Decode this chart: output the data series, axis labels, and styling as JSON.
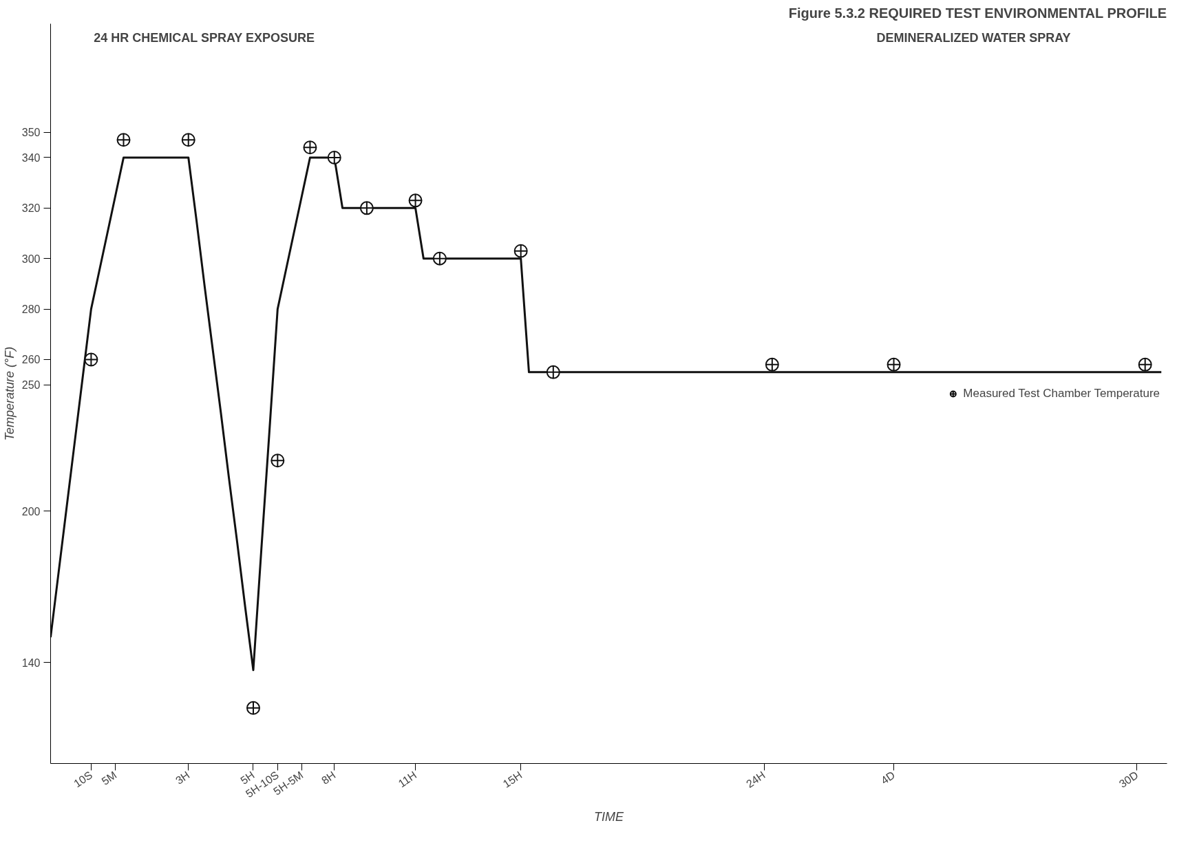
{
  "chart_data": {
    "type": "line",
    "title": "Figure 5.3.2 REQUIRED TEST ENVIRONMENTAL PROFILE",
    "xlabel": "TIME",
    "ylabel": "Temperature (°F)",
    "annotations": [
      "24 HR CHEMICAL SPRAY EXPOSURE",
      "DEMINERALIZED WATER SPRAY"
    ],
    "categories": [
      null,
      null,
      null,
      null,
      null,
      "10S",
      null,
      null,
      "5M",
      null,
      null,
      null,
      null,
      null,
      null,
      null,
      null,
      "3H",
      null,
      null,
      null,
      null,
      null,
      null,
      null,
      "5H",
      null,
      null,
      "5H-10S",
      null,
      null,
      "5H-5M",
      null,
      null,
      null,
      "8H",
      null,
      null,
      null,
      null,
      null,
      null,
      null,
      null,
      null,
      "11H",
      null,
      null,
      null,
      null,
      null,
      null,
      null,
      null,
      null,
      null,
      null,
      null,
      "15H",
      null,
      null,
      null,
      null,
      null,
      null,
      null,
      null,
      null,
      null,
      null,
      null,
      null,
      null,
      null,
      null,
      null,
      null,
      null,
      null,
      null,
      null,
      null,
      null,
      null,
      null,
      null,
      null,
      null,
      "24H",
      null,
      null,
      null,
      null,
      null,
      null,
      null,
      null,
      null,
      null,
      null,
      null,
      null,
      null,
      null,
      "4D",
      null,
      null,
      null,
      null,
      null,
      null,
      null,
      null,
      null,
      null,
      null,
      null,
      null,
      null,
      null,
      null,
      null,
      null,
      null,
      null,
      null,
      null,
      null,
      null,
      null,
      null,
      null,
      null,
      null,
      "30D",
      null,
      null,
      null
    ],
    "ylim": [
      100,
      393
    ],
    "yticks": [
      140,
      200,
      250,
      260,
      280,
      300,
      320,
      340,
      350
    ],
    "grid": false,
    "legend": "right",
    "series": [
      {
        "color": "#111111",
        "line_style": "solid",
        "values": [
          150,
          176,
          202,
          228,
          254,
          280,
          295,
          310,
          325,
          340,
          340,
          340,
          340,
          340,
          340,
          340,
          340,
          340,
          315,
          289,
          264,
          239,
          213,
          188,
          162,
          137,
          185,
          232,
          280,
          295,
          310,
          325,
          340,
          340,
          340,
          340,
          320,
          320,
          320,
          320,
          320,
          320,
          320,
          320,
          320,
          320,
          300,
          300,
          300,
          300,
          300,
          300,
          300,
          300,
          300,
          300,
          300,
          300,
          300,
          255,
          255,
          255,
          255,
          255,
          255,
          255,
          255,
          255,
          255,
          255,
          255,
          255,
          255,
          255,
          255,
          255,
          255,
          255,
          255,
          255,
          255,
          255,
          255,
          255,
          255,
          255,
          255,
          255,
          255,
          255,
          255,
          255,
          255,
          255,
          255,
          255,
          255,
          255,
          255,
          255,
          255,
          255,
          255,
          255,
          255,
          255,
          255,
          255,
          255,
          255,
          255,
          255,
          255,
          255,
          255,
          255,
          255,
          255,
          255,
          255,
          255,
          255,
          255,
          255,
          255,
          255,
          255,
          255,
          255,
          255,
          255,
          255,
          255,
          255,
          255,
          255,
          255,
          255
        ]
      },
      {
        "type": "scatter",
        "name": "Measured Test Chamber Temperature",
        "color": "#111111",
        "marker": "circle",
        "values": [
          null,
          null,
          null,
          null,
          null,
          260,
          null,
          null,
          null,
          347,
          null,
          null,
          null,
          null,
          null,
          null,
          null,
          347,
          null,
          null,
          null,
          null,
          null,
          null,
          null,
          122,
          null,
          null,
          220,
          null,
          null,
          null,
          344,
          null,
          null,
          340,
          null,
          null,
          null,
          320,
          null,
          null,
          null,
          null,
          null,
          323,
          null,
          null,
          300,
          null,
          null,
          null,
          null,
          null,
          null,
          null,
          null,
          null,
          303,
          null,
          null,
          null,
          255,
          null,
          null,
          null,
          null,
          null,
          null,
          null,
          null,
          null,
          null,
          null,
          null,
          null,
          null,
          null,
          null,
          null,
          null,
          null,
          null,
          null,
          null,
          null,
          null,
          null,
          null,
          258,
          null,
          null,
          null,
          null,
          null,
          null,
          null,
          null,
          null,
          null,
          null,
          null,
          null,
          null,
          258,
          null,
          null,
          null,
          null,
          null,
          null,
          null,
          null,
          null,
          null,
          null,
          null,
          null,
          null,
          null,
          null,
          null,
          null,
          null,
          null,
          null,
          null,
          null,
          null,
          null,
          null,
          null,
          null,
          null,
          null,
          258,
          null,
          null
        ]
      }
    ]
  }
}
